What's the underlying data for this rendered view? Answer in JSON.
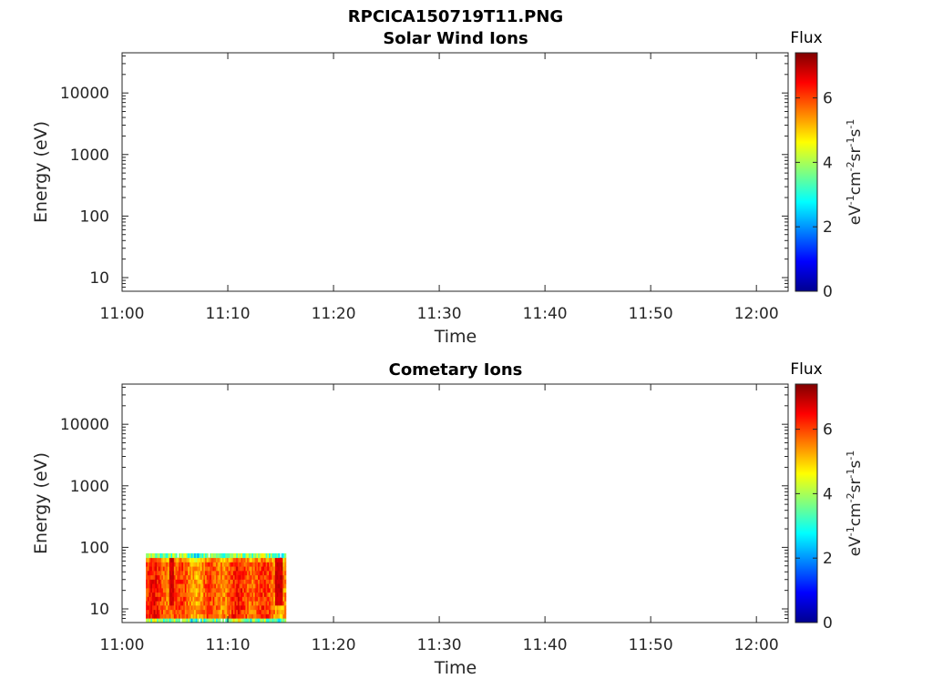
{
  "figure_title": "RPCICA150719T11.PNG",
  "chart_data": [
    {
      "type": "heatmap",
      "title": "Solar Wind Ions",
      "xlabel": "Time",
      "ylabel": "Energy (eV)",
      "x_ticks": [
        "11:00",
        "11:10",
        "11:20",
        "11:30",
        "11:40",
        "11:50",
        "12:00"
      ],
      "xlim": [
        "11:00",
        "12:03"
      ],
      "y_scale": "log",
      "y_ticks": [
        10,
        100,
        1000,
        10000
      ],
      "y_tick_labels": [
        "10",
        "100",
        "1000",
        "10000"
      ],
      "ylim": [
        6,
        45000
      ],
      "colorbar": {
        "label": "Flux",
        "units": "eV-1cm-2sr-1s-1",
        "range": [
          0,
          7.4
        ],
        "ticks": [
          0,
          2,
          4,
          6
        ],
        "tick_labels": [
          "0",
          "2",
          "4",
          "6"
        ],
        "colormap": "jet"
      },
      "data": {
        "empty": true
      }
    },
    {
      "type": "heatmap",
      "title": "Cometary Ions",
      "xlabel": "Time",
      "ylabel": "Energy (eV)",
      "x_ticks": [
        "11:00",
        "11:10",
        "11:20",
        "11:30",
        "11:40",
        "11:50",
        "12:00"
      ],
      "xlim": [
        "11:00",
        "12:03"
      ],
      "y_scale": "log",
      "y_ticks": [
        10,
        100,
        1000,
        10000
      ],
      "y_tick_labels": [
        "10",
        "100",
        "1000",
        "10000"
      ],
      "ylim": [
        6,
        45000
      ],
      "colorbar": {
        "label": "Flux",
        "units": "eV-1cm-2sr-1s-1",
        "range": [
          0,
          7.4
        ],
        "ticks": [
          0,
          2,
          4,
          6
        ],
        "tick_labels": [
          "0",
          "2",
          "4",
          "6"
        ],
        "colormap": "jet"
      },
      "data": {
        "time_range": [
          "11:02:15",
          "11:15:30"
        ],
        "energy_range": [
          6,
          80
        ],
        "typical_flux": 5.8,
        "peak_flux": 7.0
      }
    }
  ]
}
